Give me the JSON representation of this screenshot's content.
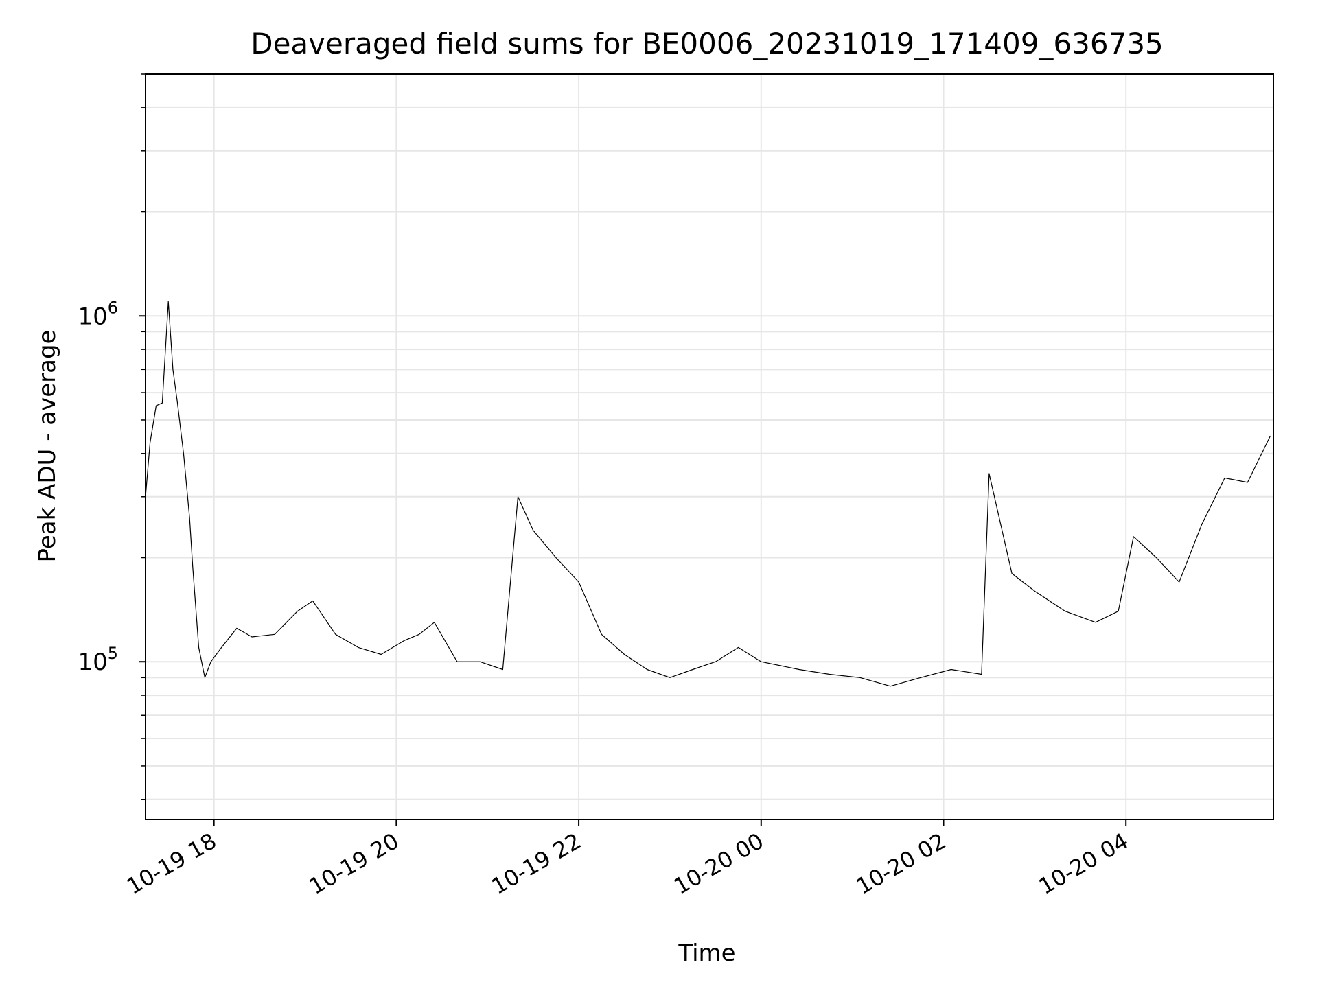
{
  "chart_data": {
    "type": "line",
    "title": "Deaveraged field sums for BE0006_20231019_171409_636735",
    "xlabel": "Time",
    "ylabel": "Peak ADU - average",
    "y_scale": "log",
    "ylim": [
      35000,
      5000000
    ],
    "xlim": [
      "2023-10-19 17:15",
      "2023-10-20 05:37"
    ],
    "grid": true,
    "line_color": "#000000",
    "x_ticks": [
      {
        "t": "2023-10-19 18:00",
        "label": "10-19 18"
      },
      {
        "t": "2023-10-19 20:00",
        "label": "10-19 20"
      },
      {
        "t": "2023-10-19 22:00",
        "label": "10-19 22"
      },
      {
        "t": "2023-10-20 00:00",
        "label": "10-20 00"
      },
      {
        "t": "2023-10-20 02:00",
        "label": "10-20 02"
      },
      {
        "t": "2023-10-20 04:00",
        "label": "10-20 04"
      }
    ],
    "y_ticks": [
      {
        "value": 100000,
        "base": "10",
        "exp": "5"
      },
      {
        "value": 1000000,
        "base": "10",
        "exp": "6"
      }
    ],
    "series": [
      {
        "x": [
          "2023-10-19 17:15",
          "2023-10-19 17:18",
          "2023-10-19 17:22",
          "2023-10-19 17:26",
          "2023-10-19 17:30",
          "2023-10-19 17:33",
          "2023-10-19 17:36",
          "2023-10-19 17:40",
          "2023-10-19 17:44",
          "2023-10-19 17:46",
          "2023-10-19 17:50",
          "2023-10-19 17:54",
          "2023-10-19 17:58",
          "2023-10-19 18:05",
          "2023-10-19 18:15",
          "2023-10-19 18:25",
          "2023-10-19 18:40",
          "2023-10-19 18:55",
          "2023-10-19 19:05",
          "2023-10-19 19:20",
          "2023-10-19 19:35",
          "2023-10-19 19:50",
          "2023-10-19 20:05",
          "2023-10-19 20:15",
          "2023-10-19 20:25",
          "2023-10-19 20:40",
          "2023-10-19 20:55",
          "2023-10-19 21:10",
          "2023-10-19 21:20",
          "2023-10-19 21:30",
          "2023-10-19 21:45",
          "2023-10-19 22:00",
          "2023-10-19 22:15",
          "2023-10-19 22:30",
          "2023-10-19 22:45",
          "2023-10-19 23:00",
          "2023-10-19 23:15",
          "2023-10-19 23:30",
          "2023-10-19 23:45",
          "2023-10-20 00:00",
          "2023-10-20 00:25",
          "2023-10-20 00:45",
          "2023-10-20 01:05",
          "2023-10-20 01:25",
          "2023-10-20 01:45",
          "2023-10-20 02:05",
          "2023-10-20 02:25",
          "2023-10-20 02:30",
          "2023-10-20 02:45",
          "2023-10-20 03:00",
          "2023-10-20 03:20",
          "2023-10-20 03:40",
          "2023-10-20 03:55",
          "2023-10-20 04:05",
          "2023-10-20 04:20",
          "2023-10-20 04:35",
          "2023-10-20 04:50",
          "2023-10-20 05:05",
          "2023-10-20 05:20",
          "2023-10-20 05:35"
        ],
        "y": [
          300000,
          430000,
          550000,
          560000,
          1100000,
          700000,
          560000,
          400000,
          260000,
          190000,
          110000,
          90000,
          100000,
          110000,
          125000,
          118000,
          120000,
          140000,
          150000,
          120000,
          110000,
          105000,
          115000,
          120000,
          130000,
          100000,
          100000,
          95000,
          300000,
          240000,
          200000,
          170000,
          120000,
          105000,
          95000,
          90000,
          95000,
          100000,
          110000,
          100000,
          95000,
          92000,
          90000,
          85000,
          90000,
          95000,
          92000,
          350000,
          180000,
          160000,
          140000,
          130000,
          140000,
          230000,
          200000,
          170000,
          250000,
          340000,
          330000,
          450000
        ]
      }
    ]
  }
}
